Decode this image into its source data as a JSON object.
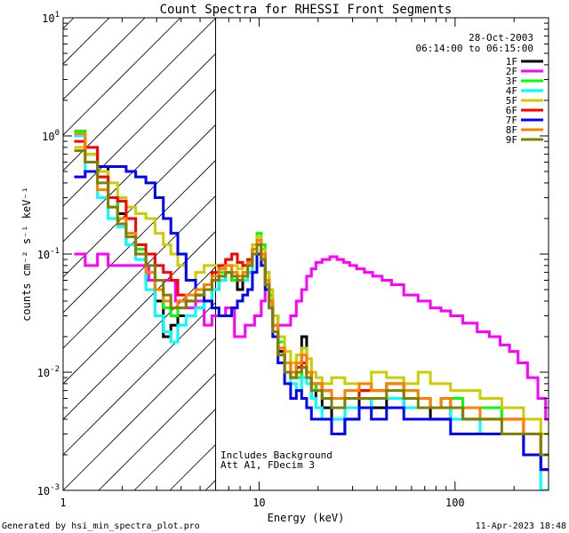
{
  "chart_data": {
    "type": "line",
    "title": "Count Spectra for RHESSI Front Segments",
    "xlabel": "Energy (keV)",
    "ylabel": "counts cm⁻² s⁻¹ keV⁻¹",
    "xscale": "log",
    "yscale": "log",
    "xlim": [
      1,
      300
    ],
    "ylim": [
      0.001,
      10
    ],
    "x_ticks": [
      {
        "v": 1,
        "label": "1"
      },
      {
        "v": 10,
        "label": "10"
      },
      {
        "v": 100,
        "label": "100"
      }
    ],
    "y_ticks": [
      {
        "v": 10,
        "base": "10",
        "exp": "1"
      },
      {
        "v": 1,
        "base": "10",
        "exp": "0"
      },
      {
        "v": 0.1,
        "base": "10",
        "exp": "-1"
      },
      {
        "v": 0.01,
        "base": "10",
        "exp": "-2"
      },
      {
        "v": 0.001,
        "base": "10",
        "exp": "-3"
      }
    ],
    "attenuator_threshold_kev": 6,
    "date": "28-Oct-2003",
    "time_range": "06:14:00 to 06:15:00",
    "annotations": [
      "Includes Background",
      "Att A1, FDecim 3"
    ],
    "footer_left": "Generated by hsi_min_spectra_plot.pro",
    "footer_right": "11-Apr-2023 18:48",
    "series": [
      {
        "name": "1F",
        "color": "#000000",
        "x": [
          1.2,
          1.4,
          1.6,
          1.8,
          2.0,
          2.2,
          2.5,
          2.8,
          3.1,
          3.4,
          3.7,
          4.0,
          4.5,
          5,
          5.5,
          6,
          6.5,
          7,
          7.5,
          8,
          8.5,
          9,
          9.5,
          10,
          10.5,
          11,
          11.5,
          12,
          13,
          14,
          15,
          16,
          17,
          18,
          19,
          20,
          22,
          25,
          30,
          35,
          40,
          50,
          60,
          70,
          80,
          90,
          100,
          120,
          150,
          200,
          250,
          300
        ],
        "y": [
          1.0,
          0.7,
          0.55,
          0.3,
          0.22,
          0.12,
          0.1,
          0.06,
          0.04,
          0.02,
          0.025,
          0.03,
          0.03,
          0.035,
          0.04,
          0.05,
          0.06,
          0.07,
          0.06,
          0.05,
          0.06,
          0.07,
          0.1,
          0.12,
          0.09,
          0.06,
          0.04,
          0.025,
          0.015,
          0.01,
          0.009,
          0.012,
          0.02,
          0.01,
          0.006,
          0.008,
          0.005,
          0.003,
          0.004,
          0.006,
          0.005,
          0.006,
          0.005,
          0.005,
          0.004,
          0.004,
          0.005,
          0.004,
          0.003,
          0.003,
          0.002,
          0.0015
        ]
      },
      {
        "name": "2F",
        "color": "#ff00ff",
        "x": [
          1.2,
          1.4,
          1.6,
          1.8,
          2.0,
          2.5,
          3,
          3.5,
          4,
          4.5,
          5,
          5.5,
          6,
          6.5,
          7,
          8,
          9,
          10,
          10.5,
          11,
          11.5,
          12,
          13,
          14,
          15,
          16,
          17,
          18,
          19,
          20,
          22,
          24,
          26,
          28,
          30,
          33,
          36,
          40,
          45,
          50,
          60,
          70,
          80,
          90,
          100,
          120,
          140,
          160,
          180,
          200,
          220,
          250,
          280,
          300
        ],
        "y": [
          0.1,
          0.08,
          0.1,
          0.08,
          0.08,
          0.08,
          0.06,
          0.06,
          0.04,
          0.035,
          0.04,
          0.025,
          0.03,
          0.03,
          0.035,
          0.02,
          0.025,
          0.03,
          0.04,
          0.06,
          0.04,
          0.03,
          0.025,
          0.025,
          0.03,
          0.04,
          0.05,
          0.065,
          0.075,
          0.085,
          0.09,
          0.095,
          0.09,
          0.085,
          0.08,
          0.075,
          0.07,
          0.065,
          0.06,
          0.055,
          0.045,
          0.04,
          0.035,
          0.033,
          0.03,
          0.026,
          0.022,
          0.02,
          0.017,
          0.015,
          0.012,
          0.009,
          0.006,
          0.004
        ]
      },
      {
        "name": "3F",
        "color": "#00ff00",
        "x": [
          1.2,
          1.4,
          1.6,
          1.8,
          2.0,
          2.2,
          2.5,
          2.8,
          3.1,
          3.4,
          3.7,
          4.0,
          4.5,
          5,
          5.5,
          6,
          6.5,
          7,
          7.5,
          8,
          8.5,
          9,
          9.5,
          10,
          10.5,
          11,
          11.5,
          12,
          13,
          14,
          15,
          16,
          17,
          18,
          19,
          20,
          22,
          25,
          30,
          35,
          40,
          50,
          60,
          70,
          80,
          90,
          100,
          120,
          150,
          200,
          250,
          300
        ],
        "y": [
          1.1,
          0.7,
          0.45,
          0.3,
          0.2,
          0.15,
          0.11,
          0.07,
          0.05,
          0.035,
          0.03,
          0.035,
          0.04,
          0.045,
          0.05,
          0.06,
          0.07,
          0.07,
          0.06,
          0.06,
          0.065,
          0.08,
          0.11,
          0.15,
          0.12,
          0.07,
          0.045,
          0.03,
          0.018,
          0.012,
          0.01,
          0.009,
          0.011,
          0.01,
          0.008,
          0.007,
          0.006,
          0.005,
          0.006,
          0.007,
          0.007,
          0.008,
          0.007,
          0.006,
          0.005,
          0.006,
          0.006,
          0.005,
          0.005,
          0.004,
          0.003,
          0.002
        ]
      },
      {
        "name": "4F",
        "color": "#00ffff",
        "x": [
          1.2,
          1.4,
          1.6,
          1.8,
          2.0,
          2.2,
          2.5,
          2.8,
          3.1,
          3.4,
          3.7,
          4.0,
          4.5,
          5,
          5.5,
          6,
          6.5,
          7,
          7.5,
          8,
          8.5,
          9,
          9.5,
          10,
          10.5,
          11,
          11.5,
          12,
          13,
          14,
          15,
          16,
          17,
          18,
          19,
          20,
          22,
          25,
          30,
          35,
          40,
          50,
          60,
          70,
          80,
          90,
          100,
          120,
          150,
          200,
          250,
          300
        ],
        "y": [
          1.0,
          0.5,
          0.3,
          0.2,
          0.17,
          0.12,
          0.09,
          0.05,
          0.03,
          0.022,
          0.018,
          0.025,
          0.03,
          0.035,
          0.04,
          0.05,
          0.06,
          0.07,
          0.065,
          0.06,
          0.06,
          0.07,
          0.1,
          0.14,
          0.1,
          0.06,
          0.04,
          0.025,
          0.014,
          0.01,
          0.008,
          0.007,
          0.009,
          0.008,
          0.006,
          0.005,
          0.004,
          0.004,
          0.005,
          0.005,
          0.006,
          0.006,
          0.005,
          0.005,
          0.005,
          0.005,
          0.004,
          0.004,
          0.003,
          0.003,
          0.002,
          0.001
        ]
      },
      {
        "name": "5F",
        "color": "#cccc00",
        "x": [
          1.2,
          1.4,
          1.6,
          1.8,
          2.0,
          2.2,
          2.5,
          2.8,
          3.1,
          3.4,
          3.7,
          4.0,
          4.5,
          5,
          5.5,
          6,
          6.5,
          7,
          7.5,
          8,
          8.5,
          9,
          9.5,
          10,
          10.5,
          11,
          11.5,
          12,
          13,
          14,
          15,
          16,
          17,
          18,
          19,
          20,
          22,
          25,
          30,
          35,
          40,
          50,
          60,
          70,
          80,
          90,
          100,
          120,
          150,
          200,
          250,
          300
        ],
        "y": [
          0.8,
          0.7,
          0.5,
          0.4,
          0.3,
          0.25,
          0.22,
          0.2,
          0.15,
          0.12,
          0.1,
          0.08,
          0.06,
          0.07,
          0.08,
          0.08,
          0.075,
          0.07,
          0.08,
          0.075,
          0.08,
          0.09,
          0.12,
          0.14,
          0.11,
          0.07,
          0.05,
          0.03,
          0.02,
          0.015,
          0.012,
          0.014,
          0.016,
          0.013,
          0.01,
          0.009,
          0.008,
          0.009,
          0.008,
          0.007,
          0.01,
          0.009,
          0.008,
          0.01,
          0.008,
          0.008,
          0.007,
          0.007,
          0.006,
          0.005,
          0.004,
          0.003
        ]
      },
      {
        "name": "6F",
        "color": "#ff0000",
        "x": [
          1.2,
          1.4,
          1.6,
          1.8,
          2.0,
          2.2,
          2.5,
          2.8,
          3.1,
          3.4,
          3.7,
          4.0,
          4.5,
          5,
          5.5,
          6,
          6.5,
          7,
          7.5,
          8,
          8.5,
          9,
          9.5,
          10,
          10.5,
          11,
          11.5,
          12,
          13,
          14,
          15,
          16,
          17,
          18,
          19,
          20,
          22,
          25,
          30,
          35,
          40,
          50,
          60,
          70,
          80,
          90,
          100,
          120,
          150,
          200,
          250,
          300
        ],
        "y": [
          0.9,
          0.8,
          0.45,
          0.3,
          0.28,
          0.2,
          0.12,
          0.1,
          0.08,
          0.07,
          0.06,
          0.045,
          0.04,
          0.045,
          0.055,
          0.07,
          0.08,
          0.09,
          0.1,
          0.085,
          0.08,
          0.09,
          0.11,
          0.13,
          0.1,
          0.06,
          0.04,
          0.025,
          0.016,
          0.012,
          0.01,
          0.011,
          0.012,
          0.01,
          0.008,
          0.008,
          0.007,
          0.006,
          0.006,
          0.007,
          0.007,
          0.008,
          0.006,
          0.006,
          0.005,
          0.006,
          0.005,
          0.005,
          0.004,
          0.004,
          0.003,
          0.002
        ]
      },
      {
        "name": "7F",
        "color": "#0000ff",
        "x": [
          1.2,
          1.4,
          1.6,
          1.8,
          2.0,
          2.2,
          2.5,
          2.8,
          3.1,
          3.4,
          3.7,
          4.0,
          4.5,
          5,
          5.5,
          6,
          6.5,
          7,
          7.5,
          8,
          8.5,
          9,
          9.5,
          10,
          10.5,
          11,
          11.5,
          12,
          13,
          14,
          15,
          16,
          17,
          18,
          19,
          20,
          22,
          25,
          30,
          35,
          40,
          50,
          60,
          70,
          80,
          90,
          100,
          120,
          150,
          200,
          250,
          300
        ],
        "y": [
          0.45,
          0.5,
          0.55,
          0.55,
          0.55,
          0.5,
          0.45,
          0.4,
          0.3,
          0.2,
          0.15,
          0.1,
          0.06,
          0.045,
          0.04,
          0.035,
          0.03,
          0.03,
          0.035,
          0.04,
          0.045,
          0.05,
          0.07,
          0.1,
          0.08,
          0.05,
          0.035,
          0.02,
          0.012,
          0.008,
          0.006,
          0.007,
          0.006,
          0.005,
          0.004,
          0.004,
          0.004,
          0.003,
          0.004,
          0.005,
          0.004,
          0.005,
          0.004,
          0.004,
          0.004,
          0.004,
          0.003,
          0.003,
          0.003,
          0.003,
          0.002,
          0.0015
        ]
      },
      {
        "name": "8F",
        "color": "#ff8000",
        "x": [
          1.2,
          1.4,
          1.6,
          1.8,
          2.0,
          2.2,
          2.5,
          2.8,
          3.1,
          3.4,
          3.7,
          4.0,
          4.5,
          5,
          5.5,
          6,
          6.5,
          7,
          7.5,
          8,
          8.5,
          9,
          9.5,
          10,
          10.5,
          11,
          11.5,
          12,
          13,
          14,
          15,
          16,
          17,
          18,
          19,
          20,
          22,
          25,
          30,
          35,
          40,
          50,
          60,
          70,
          80,
          90,
          100,
          120,
          150,
          200,
          250,
          300
        ],
        "y": [
          1.05,
          0.6,
          0.35,
          0.25,
          0.2,
          0.15,
          0.1,
          0.07,
          0.05,
          0.04,
          0.035,
          0.04,
          0.045,
          0.05,
          0.055,
          0.065,
          0.075,
          0.08,
          0.07,
          0.065,
          0.07,
          0.085,
          0.11,
          0.13,
          0.1,
          0.06,
          0.04,
          0.025,
          0.016,
          0.012,
          0.01,
          0.012,
          0.014,
          0.01,
          0.008,
          0.008,
          0.007,
          0.006,
          0.007,
          0.008,
          0.007,
          0.008,
          0.007,
          0.006,
          0.005,
          0.006,
          0.005,
          0.005,
          0.004,
          0.004,
          0.003,
          0.002
        ]
      },
      {
        "name": "9F",
        "color": "#808000",
        "x": [
          1.2,
          1.4,
          1.6,
          1.8,
          2.0,
          2.2,
          2.5,
          2.8,
          3.1,
          3.4,
          3.7,
          4.0,
          4.5,
          5,
          5.5,
          6,
          6.5,
          7,
          7.5,
          8,
          8.5,
          9,
          9.5,
          10,
          10.5,
          11,
          11.5,
          12,
          13,
          14,
          15,
          16,
          17,
          18,
          19,
          20,
          22,
          25,
          30,
          35,
          40,
          50,
          60,
          70,
          80,
          90,
          100,
          120,
          150,
          200,
          250,
          300
        ],
        "y": [
          0.75,
          0.6,
          0.4,
          0.25,
          0.18,
          0.14,
          0.1,
          0.08,
          0.06,
          0.045,
          0.035,
          0.035,
          0.04,
          0.045,
          0.05,
          0.06,
          0.065,
          0.07,
          0.065,
          0.06,
          0.065,
          0.08,
          0.1,
          0.12,
          0.09,
          0.055,
          0.035,
          0.022,
          0.014,
          0.01,
          0.009,
          0.01,
          0.011,
          0.009,
          0.007,
          0.007,
          0.006,
          0.005,
          0.006,
          0.006,
          0.006,
          0.007,
          0.006,
          0.005,
          0.005,
          0.005,
          0.005,
          0.004,
          0.004,
          0.003,
          0.003,
          0.002
        ]
      }
    ]
  }
}
